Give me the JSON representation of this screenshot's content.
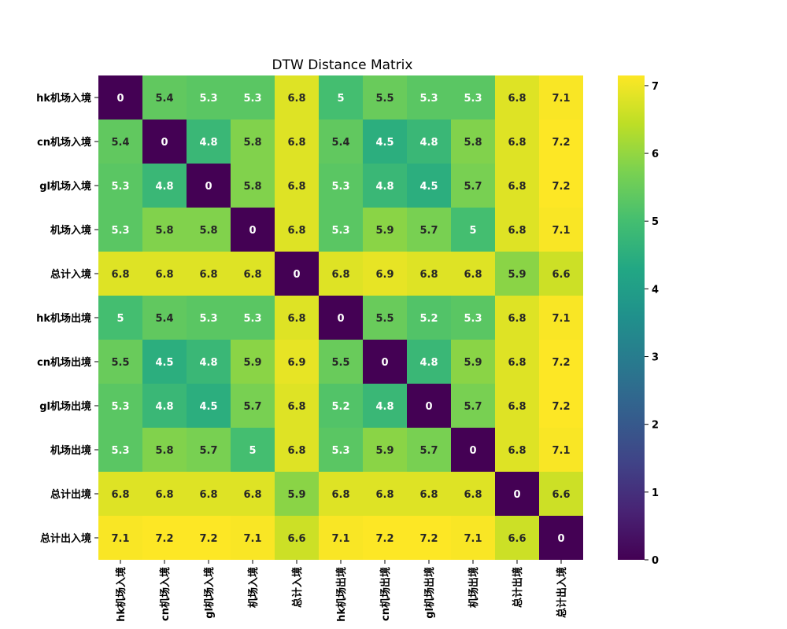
{
  "chart_data": {
    "type": "heatmap",
    "title": "DTW Distance Matrix",
    "labels": [
      "hk机场入境",
      "cn机场入境",
      "gl机场入境",
      "机场入境",
      "总计入境",
      "hk机场出境",
      "cn机场出境",
      "gl机场出境",
      "机场出境",
      "总计出境",
      "总计出入境"
    ],
    "values": [
      [
        0,
        5.4,
        5.3,
        5.3,
        6.8,
        5,
        5.5,
        5.3,
        5.3,
        6.8,
        7.1
      ],
      [
        5.4,
        0,
        4.8,
        5.8,
        6.8,
        5.4,
        4.5,
        4.8,
        5.8,
        6.8,
        7.2
      ],
      [
        5.3,
        4.8,
        0,
        5.8,
        6.8,
        5.3,
        4.8,
        4.5,
        5.7,
        6.8,
        7.2
      ],
      [
        5.3,
        5.8,
        5.8,
        0,
        6.8,
        5.3,
        5.9,
        5.7,
        5,
        6.8,
        7.1
      ],
      [
        6.8,
        6.8,
        6.8,
        6.8,
        0,
        6.8,
        6.9,
        6.8,
        6.8,
        5.9,
        6.6
      ],
      [
        5,
        5.4,
        5.3,
        5.3,
        6.8,
        0,
        5.5,
        5.2,
        5.3,
        6.8,
        7.1
      ],
      [
        5.5,
        4.5,
        4.8,
        5.9,
        6.9,
        5.5,
        0,
        4.8,
        5.9,
        6.8,
        7.2
      ],
      [
        5.3,
        4.8,
        4.5,
        5.7,
        6.8,
        5.2,
        4.8,
        0,
        5.7,
        6.8,
        7.2
      ],
      [
        5.3,
        5.8,
        5.7,
        5,
        6.8,
        5.3,
        5.9,
        5.7,
        0,
        6.8,
        7.1
      ],
      [
        6.8,
        6.8,
        6.8,
        6.8,
        5.9,
        6.8,
        6.8,
        6.8,
        6.8,
        0,
        6.6
      ],
      [
        7.1,
        7.2,
        7.2,
        7.1,
        6.6,
        7.1,
        7.2,
        7.2,
        7.1,
        6.6,
        0
      ]
    ],
    "colormap": "viridis",
    "vmin": 0,
    "vmax": 7.15,
    "colorbar_ticks": [
      0,
      1,
      2,
      3,
      4,
      5,
      6,
      7
    ],
    "annotations": true
  }
}
